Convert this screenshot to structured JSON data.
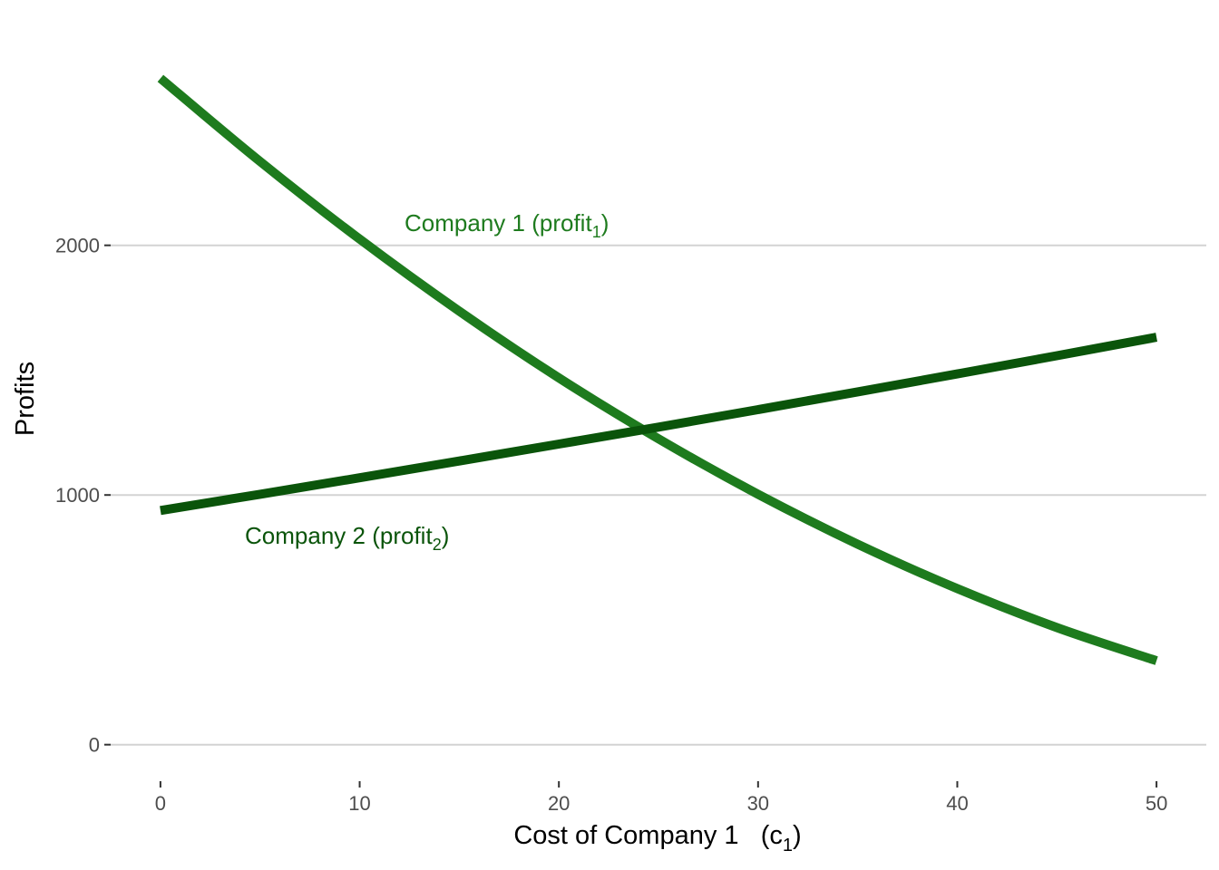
{
  "chart_data": {
    "type": "line",
    "title": "",
    "xlabel": "Cost of Company 1",
    "xlabel_symbol": "c",
    "xlabel_subscript": "1",
    "ylabel": "Profits",
    "xlim": [
      -2.5,
      52.5
    ],
    "ylim": [
      -110,
      2910
    ],
    "x_ticks": [
      0,
      10,
      20,
      30,
      40,
      50
    ],
    "y_ticks": [
      0,
      1000,
      2000
    ],
    "grid": "horizontal",
    "legend": "none",
    "x": [
      0,
      5,
      10,
      15,
      20,
      25,
      30,
      35,
      40,
      45,
      50
    ],
    "series": [
      {
        "name": "Company 1",
        "label_paren": "profit",
        "label_subscript": "1",
        "color": "#1e7b1e",
        "values": [
          2669,
          2336,
          2025,
          1736,
          1469,
          1225,
          1003,
          803,
          625,
          469,
          336
        ]
      },
      {
        "name": "Company 2",
        "label_paren": "profit",
        "label_subscript": "2",
        "color": "#0a540a",
        "values": [
          938,
          1003,
          1069,
          1136,
          1204,
          1272,
          1342,
          1413,
          1485,
          1558,
          1632
        ]
      }
    ]
  }
}
